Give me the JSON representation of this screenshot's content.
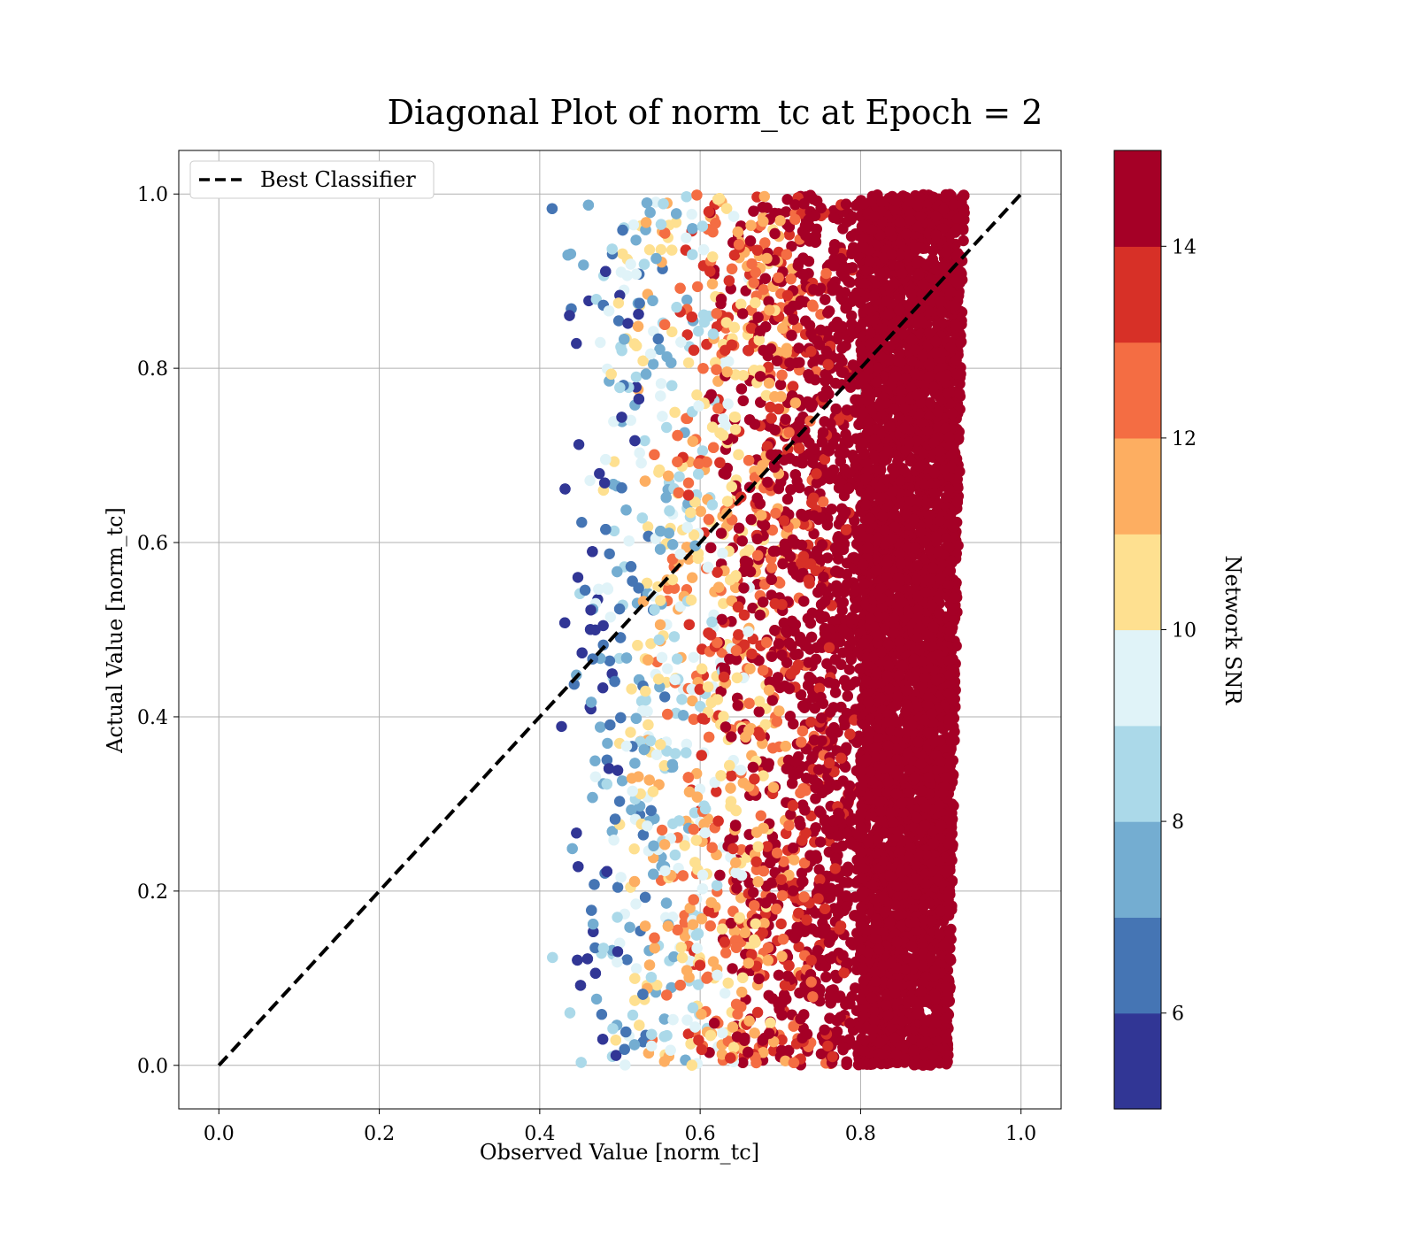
{
  "chart_data": {
    "type": "scatter",
    "title": "Diagonal Plot of norm_tc at Epoch = 2",
    "xlabel": "Observed Value [norm_tc]",
    "ylabel": "Actual Value [norm_tc]",
    "xlim": [
      -0.05,
      1.05
    ],
    "ylim": [
      -0.05,
      1.05
    ],
    "x_ticks": [
      "0.0",
      "0.2",
      "0.4",
      "0.6",
      "0.8",
      "1.0"
    ],
    "y_ticks": [
      "0.0",
      "0.2",
      "0.4",
      "0.6",
      "0.8",
      "1.0"
    ],
    "grid": true,
    "legend": {
      "placement": "top-left",
      "entries": [
        "Best Classifier"
      ]
    },
    "reference_line": {
      "name": "Best Classifier",
      "style": "dashed",
      "color": "#000000",
      "x": [
        0.0,
        1.0
      ],
      "y": [
        0.0,
        1.0
      ]
    },
    "scatter": {
      "x_range": [
        0.4,
        0.93
      ],
      "y_range": [
        0.0,
        1.0
      ],
      "description_of_trend": "color (Network SNR) increases with observed value",
      "snr_range": [
        5,
        15
      ]
    },
    "colorbar": {
      "label": "Network SNR",
      "range": [
        5,
        15
      ],
      "ticks": [
        "6",
        "8",
        "10",
        "12",
        "14"
      ],
      "colors": [
        "#313695",
        "#4575b4",
        "#74add1",
        "#abd9e9",
        "#e0f3f8",
        "#fee090",
        "#fdae61",
        "#f46d43",
        "#d73027",
        "#a50026"
      ]
    }
  }
}
